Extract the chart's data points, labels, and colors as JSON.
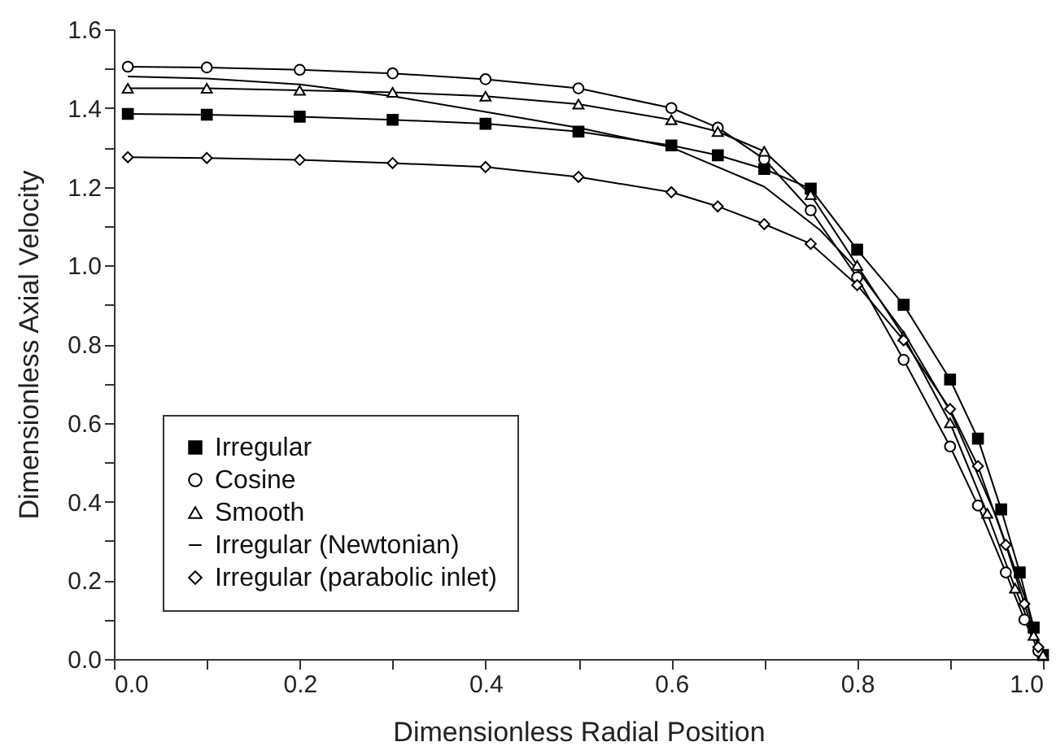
{
  "chart_data": {
    "type": "line",
    "xlabel": "Dimensionless Radial Position",
    "ylabel": "Dimensionless Axial Velocity",
    "xlim": [
      0,
      1.0
    ],
    "ylim": [
      0,
      1.6
    ],
    "xticks": [
      {
        "value": 0,
        "label": "0.0"
      },
      {
        "value": 0.1,
        "label": null
      },
      {
        "value": 0.2,
        "label": "0.2"
      },
      {
        "value": 0.3,
        "label": null
      },
      {
        "value": 0.4,
        "label": "0.4"
      },
      {
        "value": 0.5,
        "label": null
      },
      {
        "value": 0.6,
        "label": "0.6"
      },
      {
        "value": 0.7,
        "label": null
      },
      {
        "value": 0.8,
        "label": "0.8"
      },
      {
        "value": 0.9,
        "label": null
      },
      {
        "value": 1.0,
        "label": "1.0"
      }
    ],
    "yticks": [
      {
        "value": 0,
        "label": "0.0"
      },
      {
        "value": 0.1,
        "label": null
      },
      {
        "value": 0.2,
        "label": "0.2"
      },
      {
        "value": 0.3,
        "label": null
      },
      {
        "value": 0.4,
        "label": "0.4"
      },
      {
        "value": 0.5,
        "label": null
      },
      {
        "value": 0.6,
        "label": "0.6"
      },
      {
        "value": 0.7,
        "label": null
      },
      {
        "value": 0.8,
        "label": "0.8"
      },
      {
        "value": 0.9,
        "label": null
      },
      {
        "value": 1.0,
        "label": "1.0"
      },
      {
        "value": 1.1,
        "label": null
      },
      {
        "value": 1.2,
        "label": "1.2"
      },
      {
        "value": 1.3,
        "label": null
      },
      {
        "value": 1.4,
        "label": "1.4"
      },
      {
        "value": 1.5,
        "label": null
      },
      {
        "value": 1.6,
        "label": "1.6"
      }
    ],
    "grid": false,
    "legend": "bottom left",
    "line_style": "solid",
    "series": [
      {
        "name": "Irregular",
        "color": "#000000",
        "marker": "square",
        "x": [
          0.015,
          0.1,
          0.2,
          0.3,
          0.4,
          0.5,
          0.6,
          0.65,
          0.7,
          0.75,
          0.8,
          0.85,
          0.9,
          0.93,
          0.955,
          0.975,
          0.99,
          1.0
        ],
        "values": [
          1.385,
          1.383,
          1.378,
          1.37,
          1.36,
          1.34,
          1.305,
          1.28,
          1.245,
          1.195,
          1.04,
          0.9,
          0.71,
          0.56,
          0.38,
          0.22,
          0.08,
          0.01
        ]
      },
      {
        "name": "Cosine",
        "color": "#000000",
        "marker": "circle",
        "x": [
          0.015,
          0.1,
          0.2,
          0.3,
          0.4,
          0.5,
          0.6,
          0.65,
          0.7,
          0.75,
          0.8,
          0.85,
          0.9,
          0.93,
          0.96,
          0.98,
          0.995
        ],
        "values": [
          1.505,
          1.503,
          1.497,
          1.488,
          1.473,
          1.45,
          1.4,
          1.35,
          1.27,
          1.14,
          0.97,
          0.76,
          0.54,
          0.39,
          0.22,
          0.1,
          0.02
        ]
      },
      {
        "name": "Smooth",
        "color": "#000000",
        "marker": "triangle",
        "x": [
          0.015,
          0.1,
          0.2,
          0.3,
          0.4,
          0.5,
          0.6,
          0.65,
          0.7,
          0.75,
          0.8,
          0.85,
          0.9,
          0.94,
          0.97,
          0.99,
          1.0
        ],
        "values": [
          1.45,
          1.45,
          1.445,
          1.44,
          1.43,
          1.41,
          1.37,
          1.34,
          1.29,
          1.18,
          1.0,
          0.82,
          0.6,
          0.37,
          0.18,
          0.06,
          0.01
        ]
      },
      {
        "name": "Irregular (Newtonian)",
        "color": "#000000",
        "marker": "none",
        "x": [
          0.015,
          0.1,
          0.2,
          0.3,
          0.4,
          0.5,
          0.6,
          0.7,
          0.76,
          0.8,
          0.85,
          0.9,
          0.95,
          0.98,
          1.0
        ],
        "values": [
          1.48,
          1.475,
          1.46,
          1.43,
          1.39,
          1.35,
          1.3,
          1.2,
          1.09,
          0.99,
          0.83,
          0.63,
          0.36,
          0.16,
          0.0
        ]
      },
      {
        "name": "Irregular (parabolic inlet)",
        "color": "#000000",
        "marker": "diamond",
        "x": [
          0.015,
          0.1,
          0.2,
          0.3,
          0.4,
          0.5,
          0.6,
          0.65,
          0.7,
          0.75,
          0.8,
          0.85,
          0.9,
          0.93,
          0.96,
          0.98,
          0.995
        ],
        "values": [
          1.275,
          1.273,
          1.268,
          1.26,
          1.25,
          1.225,
          1.186,
          1.15,
          1.105,
          1.055,
          0.95,
          0.81,
          0.635,
          0.49,
          0.29,
          0.14,
          0.03
        ]
      }
    ]
  }
}
